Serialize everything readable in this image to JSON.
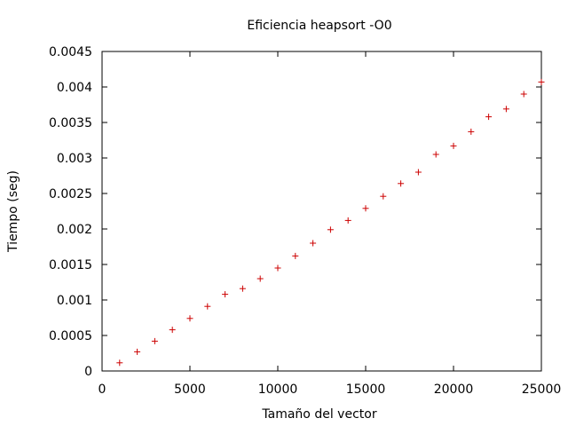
{
  "chart_data": {
    "type": "scatter",
    "title": "Eficiencia heapsort -O0",
    "xlabel": "Tamaño del vector",
    "ylabel": "Tiempo (seg)",
    "xlim": [
      0,
      25000
    ],
    "ylim": [
      0,
      0.0045
    ],
    "x_ticks": [
      0,
      5000,
      10000,
      15000,
      20000,
      25000
    ],
    "x_tick_labels": [
      "0",
      "5000",
      "10000",
      "15000",
      "20000",
      "25000"
    ],
    "y_ticks": [
      0,
      0.0005,
      0.001,
      0.0015,
      0.002,
      0.0025,
      0.003,
      0.0035,
      0.004,
      0.0045
    ],
    "y_tick_labels": [
      "0",
      "0.0005",
      "0.001",
      "0.0015",
      "0.002",
      "0.0025",
      "0.003",
      "0.0035",
      "0.004",
      "0.0045"
    ],
    "grid": false,
    "legend": "none",
    "marker": "+",
    "series": [
      {
        "color": "#cc0000",
        "x": [
          1000,
          2000,
          3000,
          4000,
          5000,
          6000,
          7000,
          8000,
          9000,
          10000,
          11000,
          12000,
          13000,
          14000,
          15000,
          16000,
          17000,
          18000,
          19000,
          20000,
          21000,
          22000,
          23000,
          24000,
          25000
        ],
        "y": [
          0.000115,
          0.00027,
          0.00042,
          0.00058,
          0.00074,
          0.00091,
          0.00108,
          0.00116,
          0.0013,
          0.00145,
          0.00162,
          0.0018,
          0.00199,
          0.00212,
          0.00229,
          0.00246,
          0.00264,
          0.0028,
          0.00305,
          0.00317,
          0.00337,
          0.00358,
          0.00369,
          0.0039,
          0.00407
        ]
      }
    ]
  }
}
